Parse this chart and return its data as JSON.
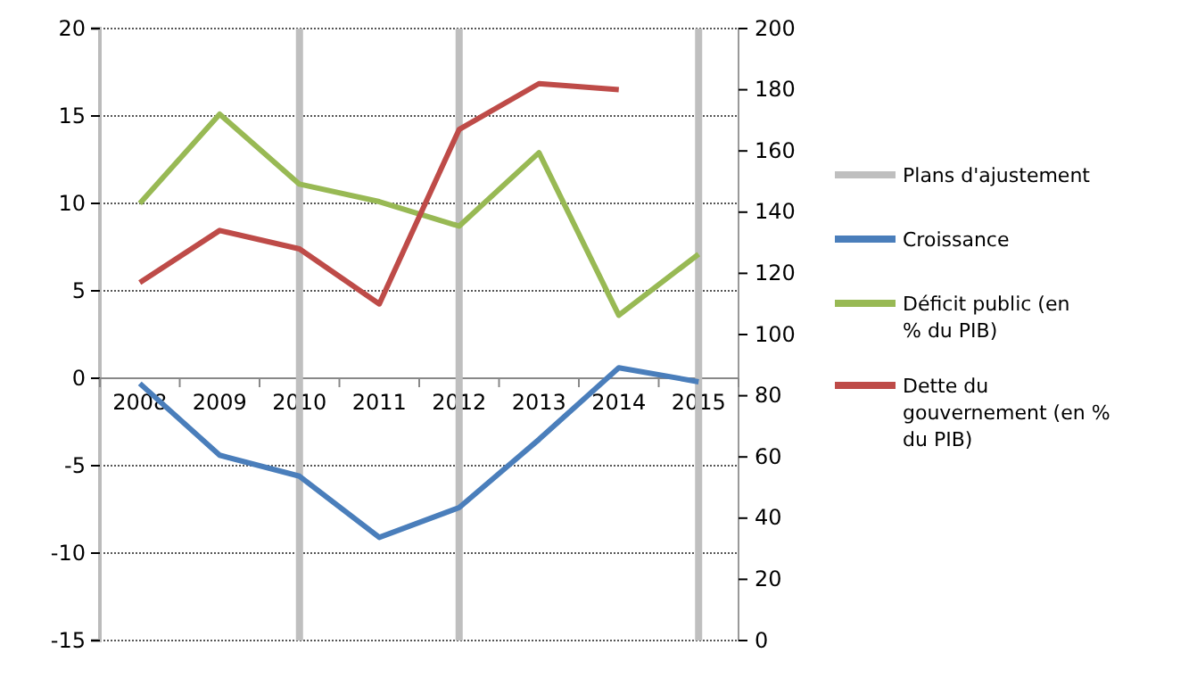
{
  "chart_data": {
    "type": "line",
    "categories": [
      "2008",
      "2009",
      "2010",
      "2011",
      "2012",
      "2013",
      "2014",
      "2015"
    ],
    "series": [
      {
        "name": "Plans d'ajustement",
        "type": "bar",
        "color": "#bfbfbf",
        "base": [
          null,
          null,
          -15,
          null,
          -15,
          null,
          null,
          -15
        ],
        "values": [
          null,
          null,
          35,
          null,
          35,
          null,
          null,
          35
        ]
      },
      {
        "name": "Croissance",
        "color": "#4a7ebb",
        "values": [
          -0.3,
          -4.4,
          -5.6,
          -9.1,
          -7.4,
          -3.5,
          0.6,
          -0.2
        ]
      },
      {
        "name": "Déficit public (en % du PIB)",
        "color": "#98b954",
        "values": [
          10.0,
          15.1,
          11.1,
          10.1,
          8.7,
          12.9,
          3.6,
          7.1
        ]
      },
      {
        "name": "Dette du gouvernement (en % du PIB)",
        "color": "#be4b48",
        "axis": "y2",
        "values": [
          117,
          134,
          128,
          110,
          167,
          182,
          180,
          null
        ]
      }
    ],
    "ylim": [
      -15,
      20
    ],
    "yticks": [
      -15,
      -10,
      -5,
      0,
      5,
      10,
      15,
      20
    ],
    "y2lim": [
      0,
      200
    ],
    "y2ticks": [
      0,
      20,
      40,
      60,
      80,
      100,
      120,
      140,
      160,
      180,
      200
    ],
    "grid": "y",
    "legend": "right",
    "marker": "none",
    "line_style": "solid"
  }
}
